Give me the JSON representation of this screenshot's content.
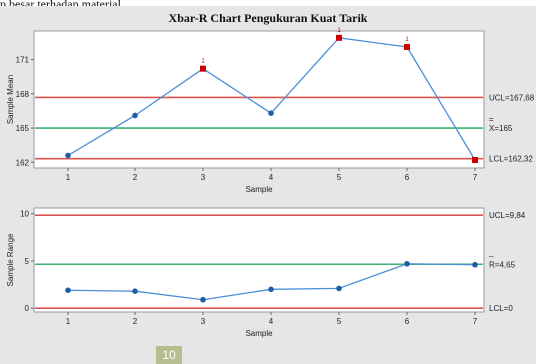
{
  "page": {
    "cropped_top_text": "p besar terhadap material"
  },
  "page_number_badge": "10",
  "chart_data": [
    {
      "type": "line",
      "title": "Xbar-R Chart Pengukuran Kuat Tarik",
      "xlabel": "Sample",
      "ylabel": "Sample Mean",
      "x": [
        1,
        2,
        3,
        4,
        5,
        6,
        7
      ],
      "x_ticks": [
        "1",
        "2",
        "3",
        "4",
        "5",
        "6",
        "7"
      ],
      "series": [
        {
          "values": [
            162.6,
            166.1,
            170.2,
            166.3,
            172.9,
            172.1,
            162.2
          ],
          "color": "#4a8fd6"
        }
      ],
      "out_of_control_points": [
        3,
        5,
        6,
        7
      ],
      "out_of_control_markers": [
        {
          "sample": 3,
          "label": "1"
        },
        {
          "sample": 5,
          "label": "1"
        },
        {
          "sample": 6,
          "label": "1"
        },
        {
          "sample": 7,
          "label": ""
        }
      ],
      "control_lines": [
        {
          "name": "UCL",
          "value": 167.68,
          "label": "UCL=167,68",
          "color": "#d9534f"
        },
        {
          "name": "center",
          "value": 165,
          "label_bar": "=",
          "label": "X=165",
          "color": "#3cb371"
        },
        {
          "name": "LCL",
          "value": 162.32,
          "label": "LCL=162,32",
          "color": "#d9534f"
        }
      ],
      "y_ticks": [
        "162",
        "165",
        "168",
        "171"
      ],
      "ylim": [
        161.5,
        173.5
      ],
      "grid": false
    },
    {
      "type": "line",
      "xlabel": "Sample",
      "ylabel": "Sample Range",
      "x": [
        1,
        2,
        3,
        4,
        5,
        6,
        7
      ],
      "x_ticks": [
        "1",
        "2",
        "3",
        "4",
        "5",
        "6",
        "7"
      ],
      "series": [
        {
          "values": [
            1.9,
            1.8,
            0.9,
            2.0,
            2.1,
            4.7,
            4.6
          ],
          "color": "#4a8fd6"
        }
      ],
      "control_lines": [
        {
          "name": "UCL",
          "value": 9.84,
          "label": "UCL=9,84",
          "color": "#d9534f"
        },
        {
          "name": "center",
          "value": 4.65,
          "label_bar": "_",
          "label": "R=4,65",
          "color": "#3cb371"
        },
        {
          "name": "LCL",
          "value": 0,
          "label": "LCL=0",
          "color": "#d9534f"
        }
      ],
      "y_ticks": [
        "0",
        "5",
        "10"
      ],
      "ylim": [
        -0.4,
        10.6
      ],
      "grid": false
    }
  ]
}
